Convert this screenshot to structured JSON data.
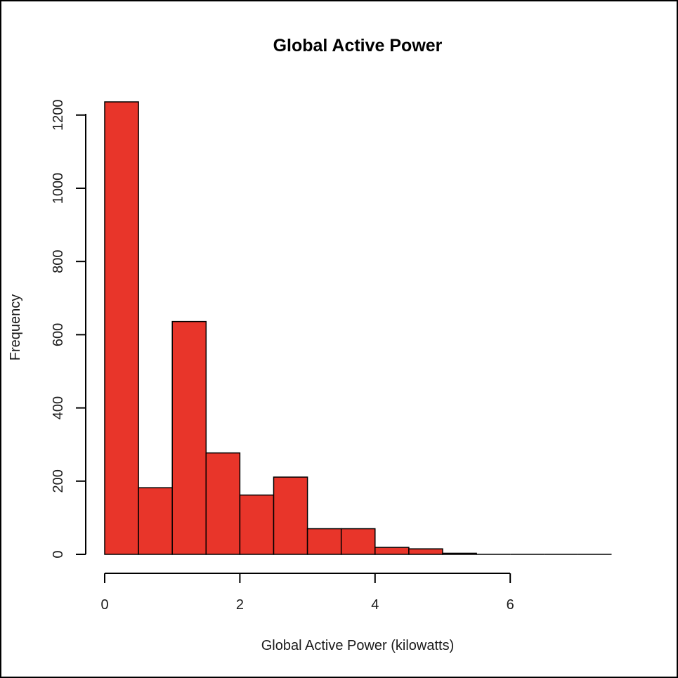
{
  "chart_data": {
    "type": "bar",
    "title": "Global Active Power",
    "xlabel": "Global Active Power (kilowatts)",
    "ylabel": "Frequency",
    "bar_color": "#e8352a",
    "bins": [
      {
        "x0": 0.0,
        "x1": 0.5,
        "count": 1236
      },
      {
        "x0": 0.5,
        "x1": 1.0,
        "count": 182
      },
      {
        "x0": 1.0,
        "x1": 1.5,
        "count": 636
      },
      {
        "x0": 1.5,
        "x1": 2.0,
        "count": 277
      },
      {
        "x0": 2.0,
        "x1": 2.5,
        "count": 162
      },
      {
        "x0": 2.5,
        "x1": 3.0,
        "count": 211
      },
      {
        "x0": 3.0,
        "x1": 3.5,
        "count": 70
      },
      {
        "x0": 3.5,
        "x1": 4.0,
        "count": 70
      },
      {
        "x0": 4.0,
        "x1": 4.5,
        "count": 19
      },
      {
        "x0": 4.5,
        "x1": 5.0,
        "count": 15
      },
      {
        "x0": 5.0,
        "x1": 5.5,
        "count": 3
      },
      {
        "x0": 5.5,
        "x1": 6.0,
        "count": 0
      },
      {
        "x0": 6.0,
        "x1": 6.5,
        "count": 0
      },
      {
        "x0": 6.5,
        "x1": 7.0,
        "count": 0
      },
      {
        "x0": 7.0,
        "x1": 7.5,
        "count": 0
      }
    ],
    "x_ticks": [
      0,
      2,
      4,
      6
    ],
    "x_tick_labels": [
      "0",
      "2",
      "4",
      "6"
    ],
    "y_ticks": [
      0,
      200,
      400,
      600,
      800,
      1000,
      1200
    ],
    "y_tick_labels": [
      "0",
      "200",
      "400",
      "600",
      "800",
      "1000",
      "1200"
    ],
    "xlim": [
      0,
      7.5
    ],
    "ylim": [
      0,
      1236
    ],
    "grid": false,
    "legend": "none"
  }
}
